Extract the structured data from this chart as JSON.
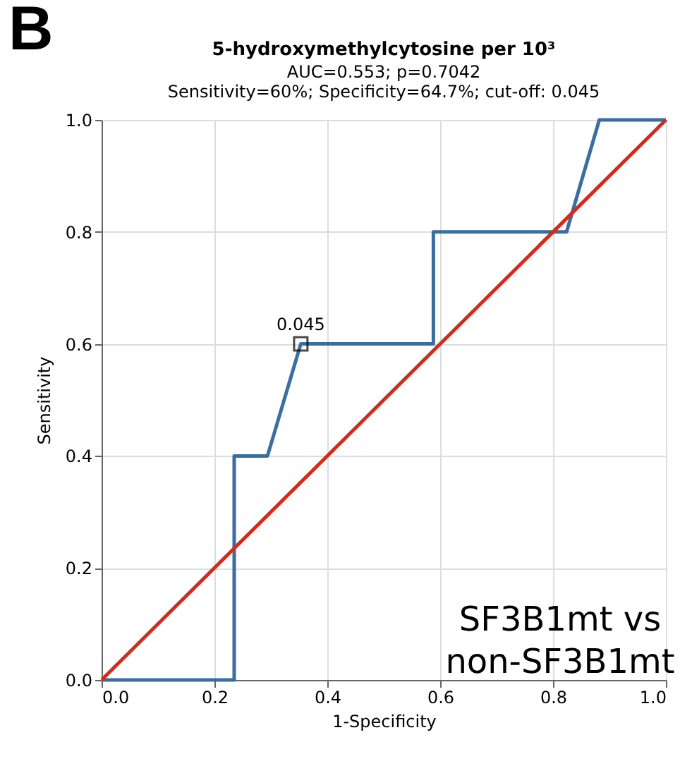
{
  "chart_data": {
    "type": "line",
    "title": "5-hydroxymethylcytosine per 10³",
    "subtitle": "AUC=0.553; p=0.7042\nSensitivity=60%; Specificity=64.7%; cut-off: 0.045",
    "xlabel": "1-Specificity",
    "ylabel": "Sensitivity",
    "series": [
      {
        "color": "#3a6ea0",
        "x": [
          0,
          0.235,
          0.235,
          0.294,
          0.353,
          0.588,
          0.588,
          0.824,
          0.882,
          1
        ],
        "values": [
          0,
          0,
          0.4,
          0.4,
          0.6,
          0.6,
          0.8,
          0.8,
          1,
          1
        ]
      },
      {
        "color": "#d42a1a",
        "x": [
          0,
          1
        ],
        "values": [
          0,
          1
        ]
      },
      {
        "type": "scatter",
        "marker": "square",
        "color": "#000000",
        "x": [
          0.353
        ],
        "values": [
          0.6
        ]
      }
    ],
    "annotations": [
      "B",
      {
        "text": "0.045",
        "x": 0.353,
        "y": 0.6
      },
      "SF3B1mt vs\nnon-SF3B1mt"
    ],
    "xlim": [
      0,
      1
    ],
    "ylim": [
      0,
      1
    ],
    "xticks": [
      {
        "value": 0,
        "label": "0.0"
      },
      {
        "value": 0.2,
        "label": "0.2"
      },
      {
        "value": 0.4,
        "label": "0.4"
      },
      {
        "value": 0.6,
        "label": "0.6"
      },
      {
        "value": 0.8,
        "label": "0.8"
      },
      {
        "value": 1,
        "label": "1.0"
      }
    ],
    "yticks": [
      {
        "value": 0,
        "label": "0.0"
      },
      {
        "value": 0.2,
        "label": "0.2"
      },
      {
        "value": 0.4,
        "label": "0.4"
      },
      {
        "value": 0.6,
        "label": "0.6"
      },
      {
        "value": 0.8,
        "label": "0.8"
      },
      {
        "value": 1,
        "label": "1.0"
      }
    ],
    "grid": true,
    "marker": "none",
    "line_style": "solid",
    "legend": false
  }
}
